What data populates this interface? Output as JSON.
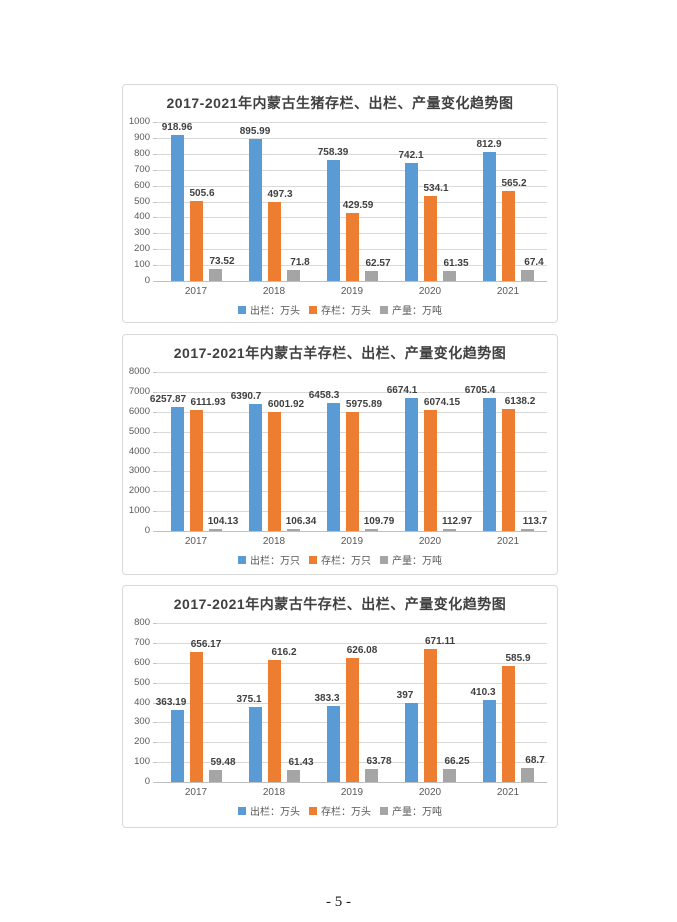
{
  "page": {
    "number_label": "- 5 -"
  },
  "colors": {
    "bar_blue": "#5B9BD5",
    "bar_orange": "#ED7D31",
    "bar_gray": "#A5A5A5",
    "gridline": "#D9D9D9",
    "axis_zero_line": "#BFBFBF",
    "axis_text": "#595959",
    "title_text": "#404040",
    "chart_border": "#D9D9D9"
  },
  "chart_data": [
    {
      "type": "bar",
      "title": "2017-2021年内蒙古生猪存栏、出栏、产量变化趋势图",
      "categories": [
        "2017",
        "2018",
        "2019",
        "2020",
        "2021"
      ],
      "series": [
        {
          "name": "出栏：万头",
          "color": "#5B9BD5",
          "values": [
            918.96,
            895.99,
            758.39,
            742.1,
            812.9
          ]
        },
        {
          "name": "存栏：万头",
          "color": "#ED7D31",
          "values": [
            505.6,
            497.3,
            429.59,
            534.1,
            565.2
          ]
        },
        {
          "name": "产量：万吨",
          "color": "#A5A5A5",
          "values": [
            73.52,
            71.8,
            62.57,
            61.35,
            67.4
          ]
        }
      ],
      "xlabel": "",
      "ylabel": "",
      "ylim": [
        0,
        1000
      ],
      "ytick_step": 100,
      "grid": true,
      "data_labels": true,
      "legend_position": "bottom"
    },
    {
      "type": "bar",
      "title": "2017-2021年内蒙古羊存栏、出栏、产量变化趋势图",
      "categories": [
        "2017",
        "2018",
        "2019",
        "2020",
        "2021"
      ],
      "series": [
        {
          "name": "出栏：万只",
          "color": "#5B9BD5",
          "values": [
            6257.87,
            6390.7,
            6458.3,
            6674.1,
            6705.4
          ]
        },
        {
          "name": "存栏：万只",
          "color": "#ED7D31",
          "values": [
            6111.93,
            6001.92,
            5975.89,
            6074.15,
            6138.2
          ]
        },
        {
          "name": "产量：万吨",
          "color": "#A5A5A5",
          "values": [
            104.13,
            106.34,
            109.79,
            112.97,
            113.7
          ]
        }
      ],
      "xlabel": "",
      "ylabel": "",
      "ylim": [
        0,
        8000
      ],
      "ytick_step": 1000,
      "grid": true,
      "data_labels": true,
      "legend_position": "bottom"
    },
    {
      "type": "bar",
      "title": "2017-2021年内蒙古牛存栏、出栏、产量变化趋势图",
      "categories": [
        "2017",
        "2018",
        "2019",
        "2020",
        "2021"
      ],
      "series": [
        {
          "name": "出栏：万头",
          "color": "#5B9BD5",
          "values": [
            363.19,
            375.1,
            383.3,
            397,
            410.3
          ]
        },
        {
          "name": "存栏：万头",
          "color": "#ED7D31",
          "values": [
            656.17,
            616.2,
            626.08,
            671.11,
            585.9
          ]
        },
        {
          "name": "产量：万吨",
          "color": "#A5A5A5",
          "values": [
            59.48,
            61.43,
            63.78,
            66.25,
            68.7
          ]
        }
      ],
      "xlabel": "",
      "ylabel": "",
      "ylim": [
        0,
        800
      ],
      "ytick_step": 100,
      "grid": true,
      "data_labels": true,
      "legend_position": "bottom"
    }
  ]
}
